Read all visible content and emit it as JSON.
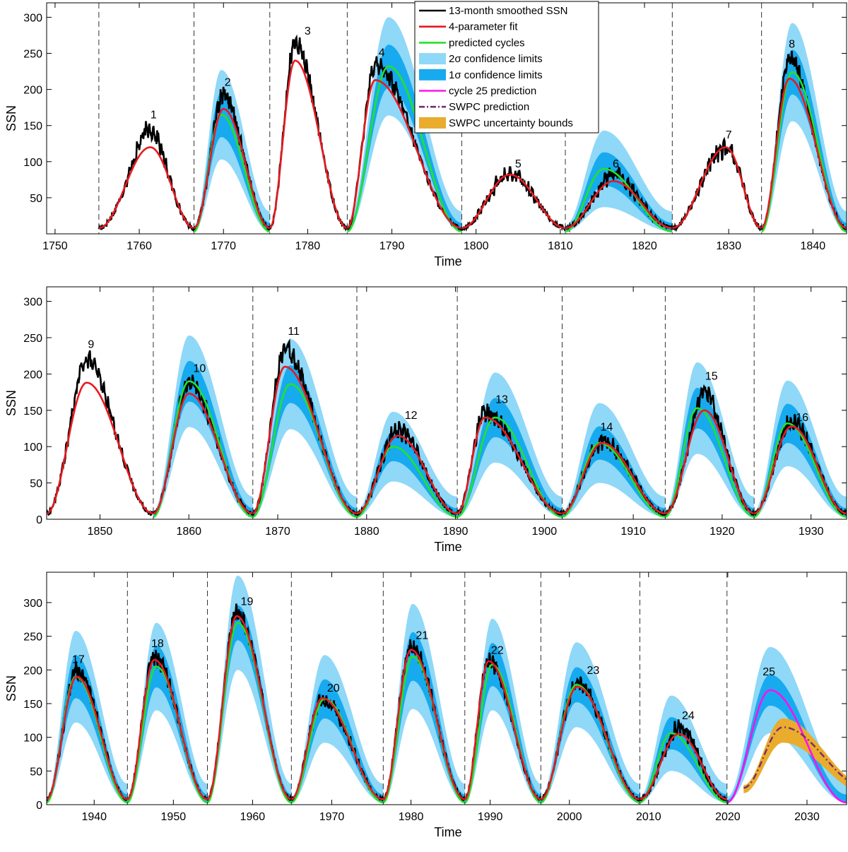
{
  "chart_data": [
    {
      "type": "line",
      "panel": "top",
      "xlabel": "Time",
      "ylabel": "SSN",
      "xlim": [
        1749,
        1844
      ],
      "ylim": [
        0,
        320
      ],
      "xticks": [
        1750,
        1760,
        1770,
        1780,
        1790,
        1800,
        1810,
        1820,
        1830,
        1840
      ],
      "yticks": [
        50,
        100,
        150,
        200,
        250,
        300
      ],
      "cycle_boundaries": [
        1755.2,
        1766.5,
        1775.5,
        1784.7,
        1798.3,
        1810.6,
        1823.3,
        1833.9
      ],
      "cycles": [
        {
          "label": "1",
          "start": 1755.2,
          "end": 1766.5,
          "fit_peak": 120,
          "fit_peak_year": 1761.3,
          "obs_peak": 145,
          "label_year": 1761.7,
          "label_value": 160
        },
        {
          "label": "2",
          "start": 1766.5,
          "end": 1775.5,
          "fit_peak": 173,
          "fit_peak_year": 1770.0,
          "obs_peak": 193,
          "label_year": 1770.5,
          "label_value": 205,
          "predicted_peak": 165,
          "sigma2_peak": 227,
          "sigma1_peak": 196
        },
        {
          "label": "3",
          "start": 1775.5,
          "end": 1784.7,
          "fit_peak": 240,
          "fit_peak_year": 1778.5,
          "obs_peak": 265,
          "label_year": 1780.0,
          "label_value": 276
        },
        {
          "label": "4",
          "start": 1784.7,
          "end": 1798.3,
          "fit_peak": 213,
          "fit_peak_year": 1788.0,
          "obs_peak": 235,
          "label_year": 1788.8,
          "label_value": 246,
          "predicted_peak": 232,
          "sigma2_peak": 300,
          "sigma1_peak": 262
        },
        {
          "label": "5",
          "start": 1798.3,
          "end": 1810.6,
          "fit_peak": 82,
          "fit_peak_year": 1804.0,
          "obs_peak": 82,
          "label_year": 1805.0,
          "label_value": 92
        },
        {
          "label": "6",
          "start": 1810.6,
          "end": 1823.3,
          "fit_peak": 73,
          "fit_peak_year": 1816.3,
          "obs_peak": 82,
          "label_year": 1816.6,
          "label_value": 92,
          "predicted_peak": 90,
          "sigma2_peak": 143,
          "sigma1_peak": 113
        },
        {
          "label": "7",
          "start": 1823.3,
          "end": 1833.9,
          "fit_peak": 120,
          "fit_peak_year": 1830.0,
          "obs_peak": 118,
          "label_year": 1830.0,
          "label_value": 132
        },
        {
          "label": "8",
          "start": 1833.9,
          "end": 1844.0,
          "fit_peak": 215,
          "fit_peak_year": 1837.2,
          "obs_peak": 245,
          "label_year": 1837.5,
          "label_value": 258,
          "predicted_peak": 224,
          "sigma2_peak": 292,
          "sigma1_peak": 255
        }
      ]
    },
    {
      "type": "line",
      "panel": "middle",
      "xlabel": "Time",
      "ylabel": "SSN",
      "xlim": [
        1844,
        1934
      ],
      "ylim": [
        0,
        320
      ],
      "xticks": [
        1850,
        1860,
        1870,
        1880,
        1890,
        1900,
        1910,
        1920,
        1930
      ],
      "yticks": [
        0,
        50,
        100,
        150,
        200,
        250,
        300
      ],
      "cycle_boundaries": [
        1856.0,
        1867.2,
        1878.9,
        1890.2,
        1902.0,
        1913.6,
        1923.6
      ],
      "cycles": [
        {
          "label": "9",
          "start": 1844.0,
          "end": 1856.0,
          "fit_peak": 188,
          "fit_peak_year": 1848.5,
          "obs_peak": 220,
          "label_year": 1849.0,
          "label_value": 236
        },
        {
          "label": "10",
          "start": 1856.0,
          "end": 1867.2,
          "fit_peak": 173,
          "fit_peak_year": 1860.0,
          "obs_peak": 186,
          "label_year": 1861.2,
          "label_value": 203,
          "predicted_peak": 190,
          "sigma2_peak": 253,
          "sigma1_peak": 218
        },
        {
          "label": "11",
          "start": 1867.2,
          "end": 1878.9,
          "fit_peak": 210,
          "fit_peak_year": 1870.8,
          "obs_peak": 234,
          "label_year": 1871.8,
          "label_value": 254,
          "predicted_peak": 186,
          "sigma2_peak": 248,
          "sigma1_peak": 212
        },
        {
          "label": "12",
          "start": 1878.9,
          "end": 1890.2,
          "fit_peak": 115,
          "fit_peak_year": 1883.5,
          "obs_peak": 123,
          "label_year": 1885.0,
          "label_value": 138,
          "predicted_peak": 100,
          "sigma2_peak": 148,
          "sigma1_peak": 120
        },
        {
          "label": "13",
          "start": 1890.2,
          "end": 1902.0,
          "fit_peak": 140,
          "fit_peak_year": 1893.3,
          "obs_peak": 147,
          "label_year": 1895.2,
          "label_value": 160,
          "predicted_peak": 140,
          "sigma2_peak": 202,
          "sigma1_peak": 167
        },
        {
          "label": "14",
          "start": 1902.0,
          "end": 1913.6,
          "fit_peak": 105,
          "fit_peak_year": 1906.5,
          "obs_peak": 108,
          "label_year": 1907.0,
          "label_value": 122,
          "predicted_peak": 105,
          "sigma2_peak": 160,
          "sigma1_peak": 128
        },
        {
          "label": "15",
          "start": 1913.6,
          "end": 1923.6,
          "fit_peak": 150,
          "fit_peak_year": 1918.0,
          "obs_peak": 176,
          "label_year": 1918.8,
          "label_value": 192,
          "predicted_peak": 153,
          "sigma2_peak": 216,
          "sigma1_peak": 181
        },
        {
          "label": "16",
          "start": 1923.6,
          "end": 1934.0,
          "fit_peak": 128,
          "fit_peak_year": 1927.8,
          "obs_peak": 133,
          "label_year": 1929.0,
          "label_value": 135,
          "predicted_peak": 132,
          "sigma2_peak": 191,
          "sigma1_peak": 159
        }
      ]
    },
    {
      "type": "line",
      "panel": "bottom",
      "xlabel": "Time",
      "ylabel": "SSN",
      "xlim": [
        1934,
        2035
      ],
      "ylim": [
        0,
        345
      ],
      "xticks": [
        1940,
        1950,
        1960,
        1970,
        1980,
        1990,
        2000,
        2010,
        2020,
        2030
      ],
      "yticks": [
        0,
        50,
        100,
        150,
        200,
        250,
        300
      ],
      "cycle_boundaries": [
        1944.2,
        1954.3,
        1964.9,
        1976.5,
        1986.8,
        1996.4,
        2008.9,
        2019.9
      ],
      "cycles": [
        {
          "label": "17",
          "start": 1934.0,
          "end": 1944.2,
          "fit_peak": 190,
          "fit_peak_year": 1937.8,
          "obs_peak": 199,
          "label_year": 1938.0,
          "label_value": 210,
          "predicted_peak": 190,
          "sigma2_peak": 258,
          "sigma1_peak": 222
        },
        {
          "label": "18",
          "start": 1944.2,
          "end": 1954.3,
          "fit_peak": 215,
          "fit_peak_year": 1947.6,
          "obs_peak": 219,
          "label_year": 1948.0,
          "label_value": 234,
          "predicted_peak": 205,
          "sigma2_peak": 270,
          "sigma1_peak": 236
        },
        {
          "label": "19",
          "start": 1954.3,
          "end": 1964.9,
          "fit_peak": 280,
          "fit_peak_year": 1958.0,
          "obs_peak": 285,
          "label_year": 1959.3,
          "label_value": 296,
          "predicted_peak": 270,
          "sigma2_peak": 340,
          "sigma1_peak": 296
        },
        {
          "label": "20",
          "start": 1964.9,
          "end": 1976.5,
          "fit_peak": 158,
          "fit_peak_year": 1968.8,
          "obs_peak": 156,
          "label_year": 1970.2,
          "label_value": 168,
          "predicted_peak": 157,
          "sigma2_peak": 222,
          "sigma1_peak": 186
        },
        {
          "label": "21",
          "start": 1976.5,
          "end": 1986.8,
          "fit_peak": 230,
          "fit_peak_year": 1980.0,
          "obs_peak": 233,
          "label_year": 1981.4,
          "label_value": 246,
          "predicted_peak": 220,
          "sigma2_peak": 298,
          "sigma1_peak": 256
        },
        {
          "label": "22",
          "start": 1986.8,
          "end": 1996.4,
          "fit_peak": 213,
          "fit_peak_year": 1989.8,
          "obs_peak": 212,
          "label_year": 1990.9,
          "label_value": 224,
          "predicted_peak": 208,
          "sigma2_peak": 276,
          "sigma1_peak": 240
        },
        {
          "label": "23",
          "start": 1996.4,
          "end": 2008.9,
          "fit_peak": 175,
          "fit_peak_year": 2001.0,
          "obs_peak": 180,
          "label_year": 2003.0,
          "label_value": 194,
          "predicted_peak": 178,
          "sigma2_peak": 241,
          "sigma1_peak": 204
        },
        {
          "label": "24",
          "start": 2008.9,
          "end": 2019.9,
          "fit_peak": 105,
          "fit_peak_year": 2013.8,
          "obs_peak": 116,
          "label_year": 2015.0,
          "label_value": 127,
          "predicted_peak": 106,
          "sigma2_peak": 162,
          "sigma1_peak": 130
        },
        {
          "label": "25",
          "start": 2019.9,
          "end": 2035.0,
          "fit_peak": 170,
          "fit_peak_year": 2024.2,
          "label_year": 2025.2,
          "label_value": 192,
          "predicted_peak": 170,
          "sigma2_peak": 234,
          "sigma1_peak": 193,
          "swpc_peak": 115,
          "swpc_peak_year": 2025.5,
          "swpc_band": [
            100,
            124
          ]
        }
      ]
    }
  ],
  "legend": {
    "placement": "top, inside top panel",
    "entries": [
      {
        "label": "13-month smoothed SSN",
        "color": "#000000",
        "style": "line"
      },
      {
        "label": "4-parameter fit",
        "color": "#e8191f",
        "style": "line"
      },
      {
        "label": "predicted cycles",
        "color": "#22e22b",
        "style": "line"
      },
      {
        "label": "2σ confidence limits",
        "color": "#8fd8f8",
        "style": "patch"
      },
      {
        "label": "1σ confidence limits",
        "color": "#18aaee",
        "style": "patch"
      },
      {
        "label": "cycle 25 prediction",
        "color": "#ff10ee",
        "style": "line"
      },
      {
        "label": "SWPC prediction",
        "color": "#7a2c6f",
        "style": "dashdot"
      },
      {
        "label": "SWPC uncertainty bounds",
        "color": "#e9ac2c",
        "style": "patch"
      }
    ]
  }
}
